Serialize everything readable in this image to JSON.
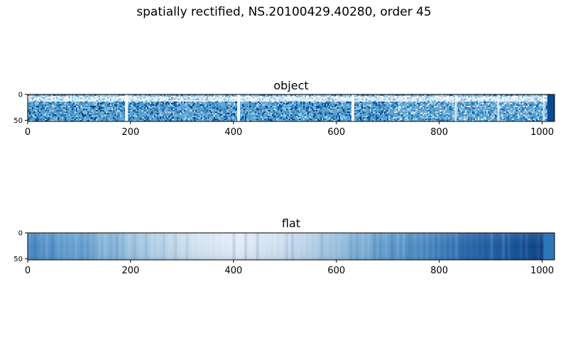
{
  "figure": {
    "title": "spatially rectified, NS.20100429.40280, order 45"
  },
  "chart_data": [
    {
      "type": "heatmap",
      "title": "object",
      "colormap": "Blues",
      "xlim": [
        0,
        1024
      ],
      "ylim": [
        0,
        52
      ],
      "x_ticks": [
        0,
        200,
        400,
        600,
        800,
        1000
      ],
      "y_ticks": [
        0,
        50
      ],
      "bright_lines_x": [
        192,
        410,
        632,
        832,
        915,
        1003
      ],
      "notes": "noisy sky spectrum; darker lower half (rows ~15-52), pale band near top (rows ~4-14)"
    },
    {
      "type": "heatmap",
      "title": "flat",
      "colormap": "Blues",
      "xlim": [
        0,
        1024
      ],
      "ylim": [
        0,
        52
      ],
      "x_ticks": [
        0,
        200,
        400,
        600,
        800,
        1000
      ],
      "y_ticks": [
        0,
        50
      ],
      "notes": "medium blue on left, pale near x~250-450, darkening steadily to deep navy at right; separate medium block beyond x~1003"
    }
  ]
}
